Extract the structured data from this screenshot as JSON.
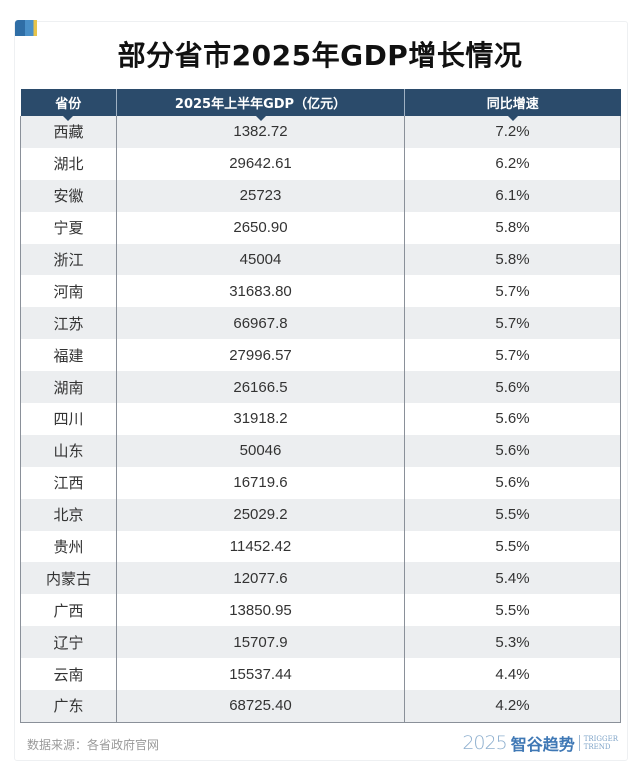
{
  "chart_data": {
    "type": "table",
    "title": "部分省市2025年GDP增长情况",
    "columns": [
      "省份",
      "2025年上半年GDP（亿元）",
      "同比增速"
    ],
    "rows": [
      [
        "西藏",
        "1382.72",
        "7.2%"
      ],
      [
        "湖北",
        "29642.61",
        "6.2%"
      ],
      [
        "安徽",
        "25723",
        "6.1%"
      ],
      [
        "宁夏",
        "2650.90",
        "5.8%"
      ],
      [
        "浙江",
        "45004",
        "5.8%"
      ],
      [
        "河南",
        "31683.80",
        "5.7%"
      ],
      [
        "江苏",
        "66967.8",
        "5.7%"
      ],
      [
        "福建",
        "27996.57",
        "5.7%"
      ],
      [
        "湖南",
        "26166.5",
        "5.6%"
      ],
      [
        "四川",
        "31918.2",
        "5.6%"
      ],
      [
        "山东",
        "50046",
        "5.6%"
      ],
      [
        "江西",
        "16719.6",
        "5.6%"
      ],
      [
        "北京",
        "25029.2",
        "5.5%"
      ],
      [
        "贵州",
        "11452.42",
        "5.5%"
      ],
      [
        "内蒙古",
        "12077.6",
        "5.4%"
      ],
      [
        "广西",
        "13850.95",
        "5.5%"
      ],
      [
        "辽宁",
        "15707.9",
        "5.3%"
      ],
      [
        "云南",
        "15537.44",
        "4.4%"
      ],
      [
        "广东",
        "68725.40",
        "4.2%"
      ]
    ],
    "header_color": "#2b4b6b",
    "stripe_color": "#eceef0"
  },
  "footer": {
    "source": "数据来源：各省政府官网",
    "logo_year": "2025",
    "logo_cn": "智谷趋势",
    "logo_en_1": "TRIGGER",
    "logo_en_2": "TREND"
  }
}
